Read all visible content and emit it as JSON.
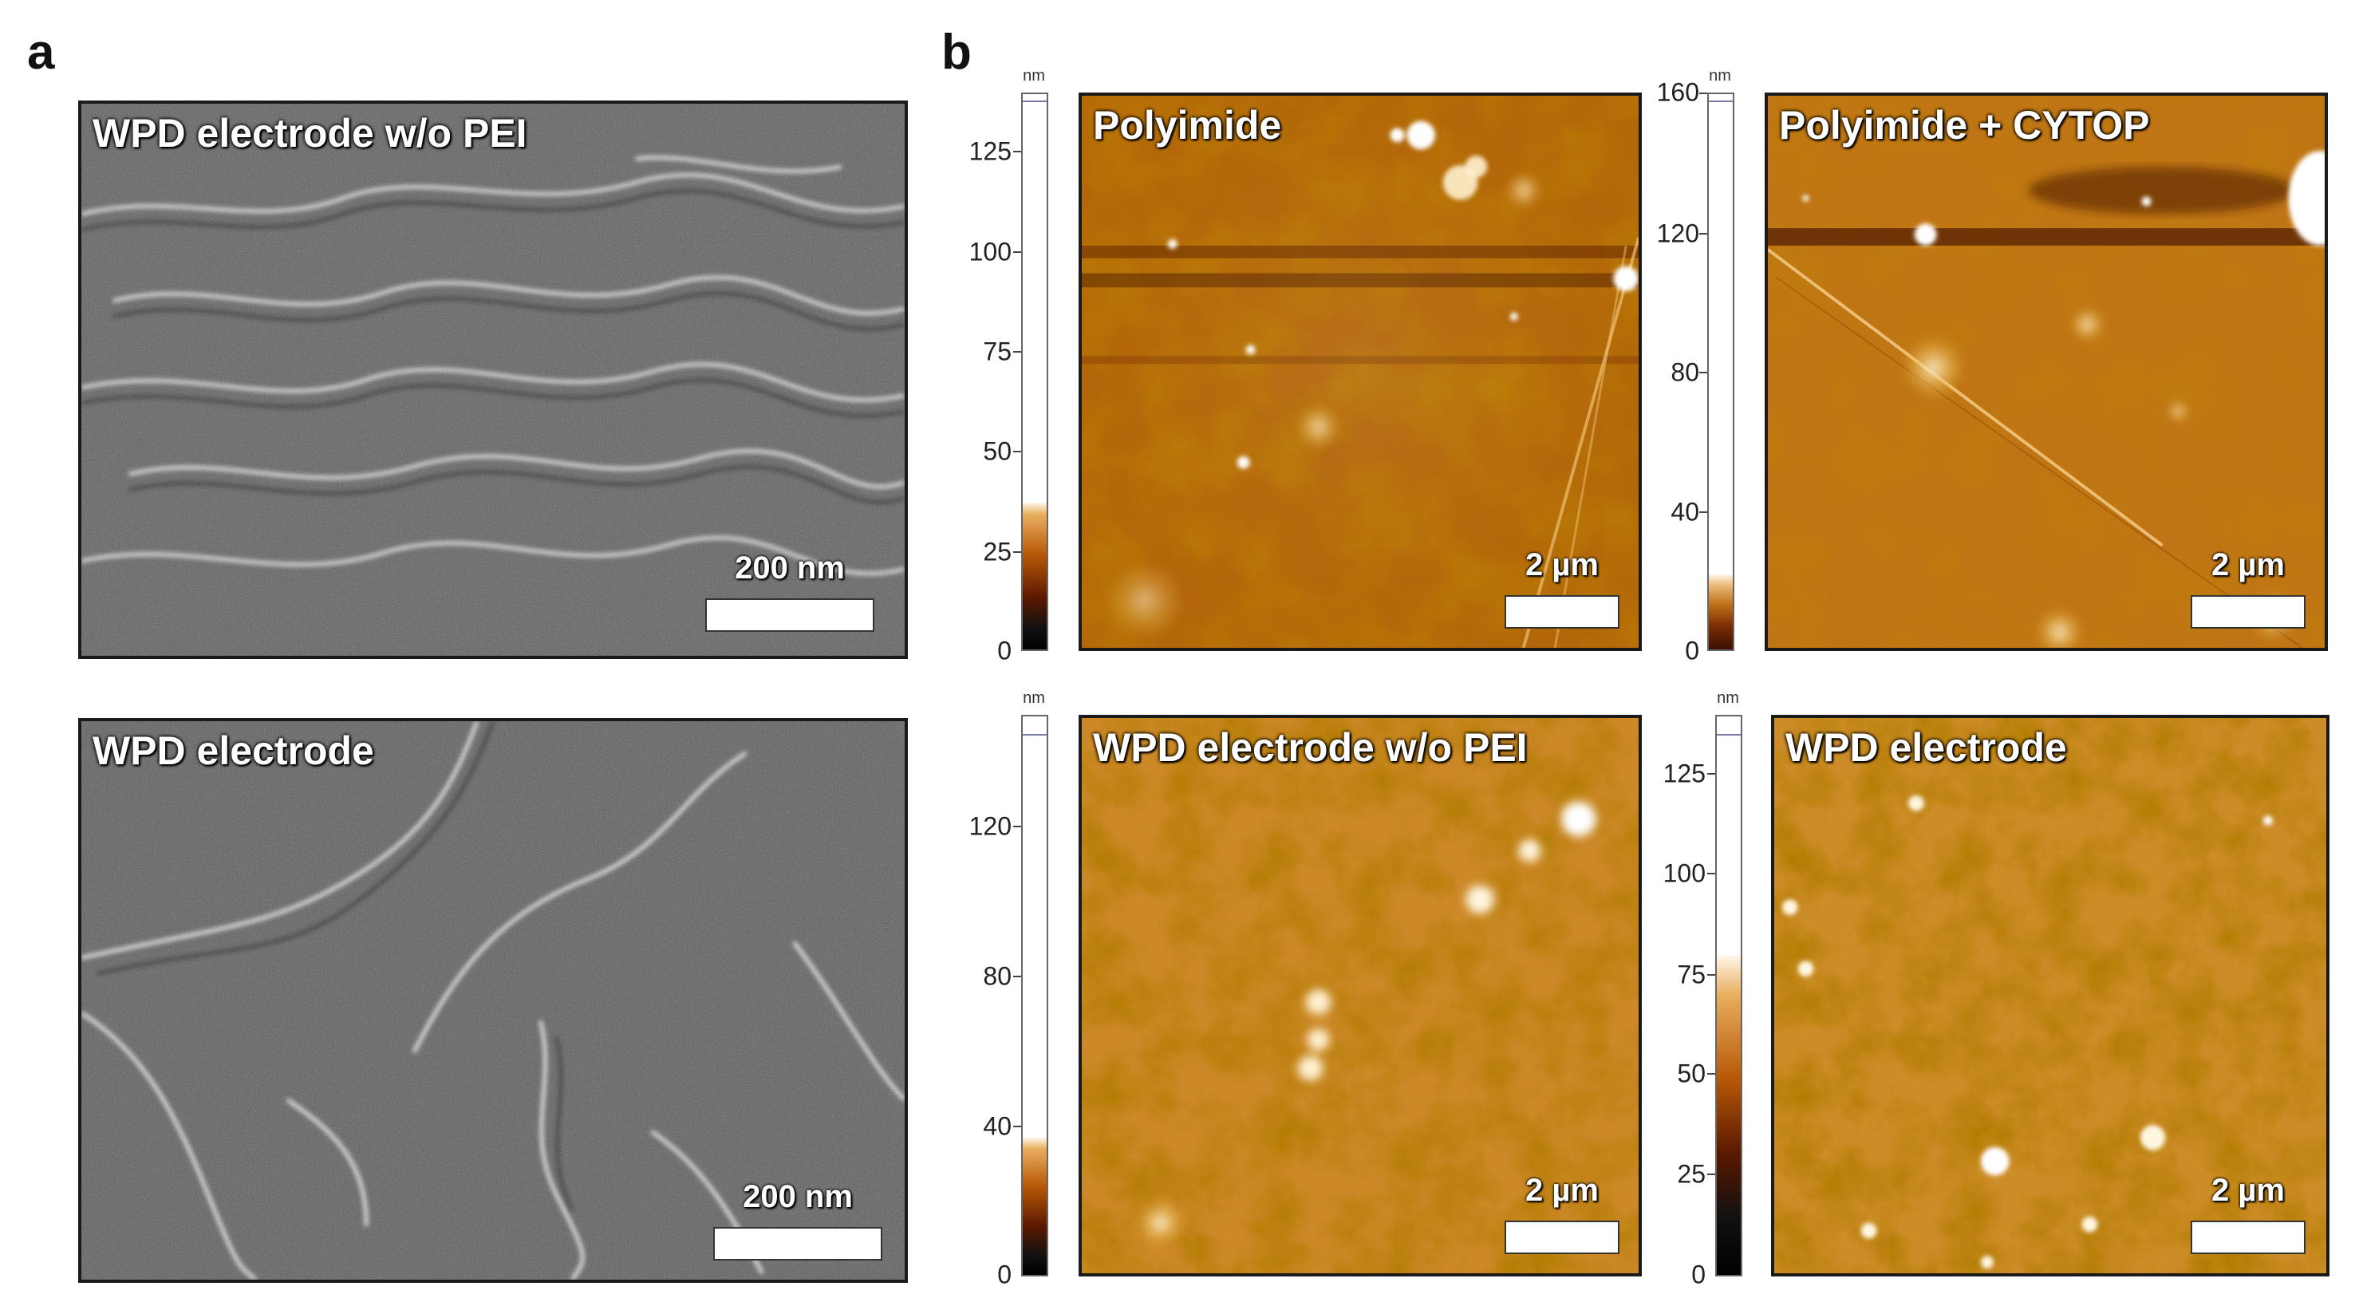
{
  "panel_a": {
    "letter": "a",
    "top": {
      "title": "WPD electrode w/o PEI",
      "scale_label": "200 nm"
    },
    "bottom": {
      "title": "WPD electrode",
      "scale_label": "200 nm"
    }
  },
  "panel_b": {
    "letter": "b",
    "colorbars": [
      {
        "unit": "nm",
        "ticks": [
          "125",
          "100",
          "75",
          "50",
          "25",
          "0"
        ]
      },
      {
        "unit": "nm",
        "ticks": [
          "160",
          "120",
          "80",
          "40",
          "0"
        ]
      },
      {
        "unit": "nm",
        "ticks": [
          "120",
          "80",
          "40",
          "0"
        ]
      },
      {
        "unit": "nm",
        "ticks": [
          "125",
          "100",
          "75",
          "50",
          "25",
          "0"
        ]
      }
    ],
    "images": [
      {
        "title": "Polyimide",
        "scale_label": "2 µm"
      },
      {
        "title": "Polyimide + CYTOP",
        "scale_label": "2 µm"
      },
      {
        "title": "WPD electrode w/o PEI",
        "scale_label": "2 µm"
      },
      {
        "title": "WPD electrode",
        "scale_label": "2 µm"
      }
    ]
  }
}
